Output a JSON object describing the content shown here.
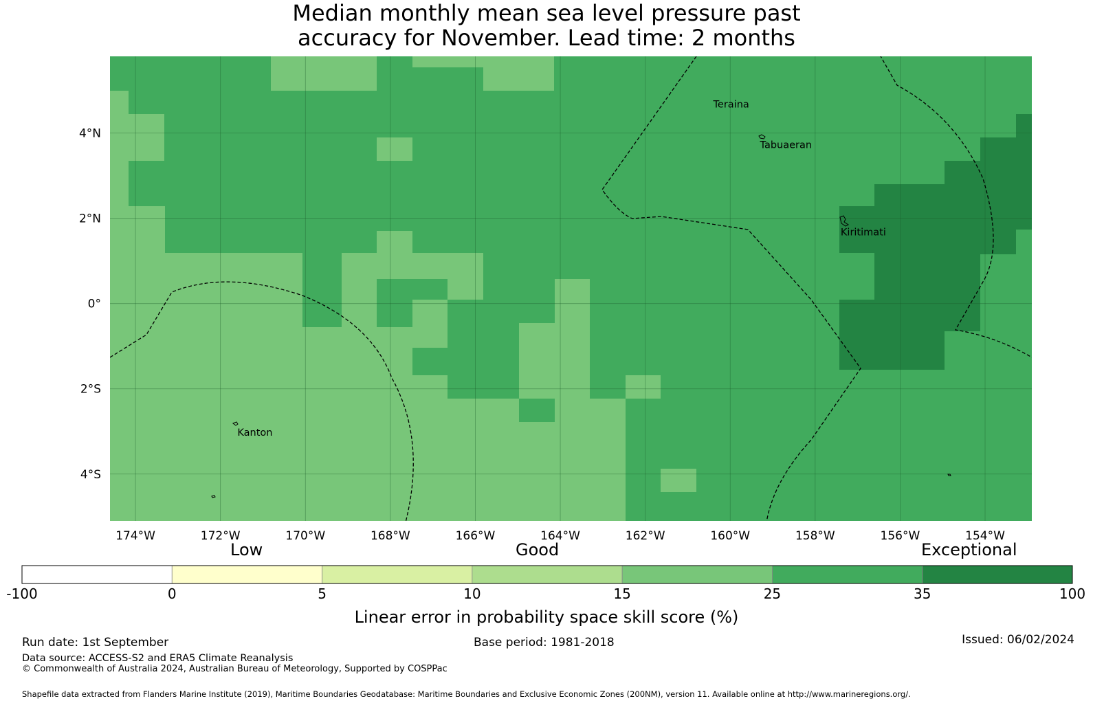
{
  "title": {
    "line1": "Median monthly mean sea level pressure past",
    "line2": "accuracy for November. Lead time: 2 months"
  },
  "map": {
    "lon_range": [
      -174.6,
      -152.9
    ],
    "lat_range": [
      -5.1,
      5.8
    ],
    "x_ticks": [
      {
        "lon": -174,
        "label": "174°W"
      },
      {
        "lon": -172,
        "label": "172°W"
      },
      {
        "lon": -170,
        "label": "170°W"
      },
      {
        "lon": -168,
        "label": "168°W"
      },
      {
        "lon": -166,
        "label": "166°W"
      },
      {
        "lon": -164,
        "label": "164°W"
      },
      {
        "lon": -162,
        "label": "162°W"
      },
      {
        "lon": -160,
        "label": "160°W"
      },
      {
        "lon": -158,
        "label": "158°W"
      },
      {
        "lon": -156,
        "label": "156°W"
      },
      {
        "lon": -154,
        "label": "154°W"
      }
    ],
    "y_ticks": [
      {
        "lat": 4,
        "label": "4°N"
      },
      {
        "lat": 2,
        "label": "2°N"
      },
      {
        "lat": 0,
        "label": "0°"
      },
      {
        "lat": -2,
        "label": "2°S"
      },
      {
        "lat": -4,
        "label": "4°S"
      }
    ],
    "places": [
      {
        "name": "Teraina",
        "lon": -160.4,
        "lat": 4.6
      },
      {
        "name": "Tabuaeran",
        "lon": -159.3,
        "lat": 3.65
      },
      {
        "name": "Kiritimati",
        "lon": -157.4,
        "lat": 1.6
      },
      {
        "name": "Kanton",
        "lon": -171.6,
        "lat": -3.1
      }
    ],
    "grid_colors": {
      "15-25": "#78c679",
      "25-35": "#41ab5d",
      "35-100": "#238443"
    },
    "base_category": "25-35"
  },
  "colorbar": {
    "labels": [
      "-100",
      "0",
      "5",
      "10",
      "15",
      "25",
      "35",
      "100"
    ],
    "colors": [
      "#ffffff",
      "#ffffcc",
      "#d9f0a3",
      "#addd8e",
      "#78c679",
      "#41ab5d",
      "#238443"
    ],
    "categories": {
      "low": "Low",
      "good": "Good",
      "exceptional": "Exceptional"
    },
    "title": "Linear error in probability space skill score (%)"
  },
  "footer": {
    "run_date": "Run date: 1st September",
    "base_period": "Base period: 1981-2018",
    "issued": "Issued: 06/02/2024",
    "data_source": "Data source: ACCESS-S2 and ERA5 Climate Reanalysis",
    "copyright": "© Commonwealth of Australia 2024, Australian Bureau of Meteorology, Supported by COSPPac",
    "shapefile": "Shapefile data extracted from Flanders Marine Institute (2019), Maritime Boundaries Geodatabase: Maritime Boundaries and Exclusive Economic Zones (200NM), version 11. Available online at http://www.marineregions.org/."
  }
}
